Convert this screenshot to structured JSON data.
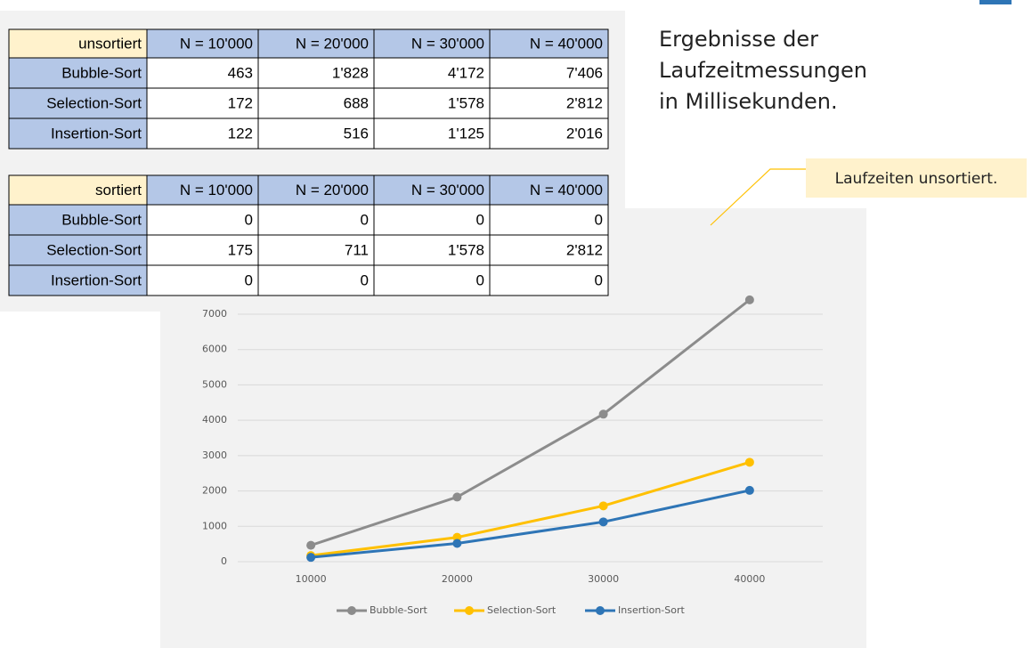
{
  "description": [
    "Ergebnisse der",
    "Laufzeitmessungen",
    "in Millisekunden."
  ],
  "callout": "Laufzeiten unsortiert.",
  "tables": [
    {
      "header": [
        "unsortiert",
        "N = 10'000",
        "N = 20'000",
        "N = 30'000",
        "N = 40'000"
      ],
      "rows": [
        [
          "Bubble-Sort",
          "463",
          "1'828",
          "4'172",
          "7'406"
        ],
        [
          "Selection-Sort",
          "172",
          "688",
          "1'578",
          "2'812"
        ],
        [
          "Insertion-Sort",
          "122",
          "516",
          "1'125",
          "2'016"
        ]
      ]
    },
    {
      "header": [
        "sortiert",
        "N = 10'000",
        "N = 20'000",
        "N = 30'000",
        "N = 40'000"
      ],
      "rows": [
        [
          "Bubble-Sort",
          "0",
          "0",
          "0",
          "0"
        ],
        [
          "Selection-Sort",
          "175",
          "711",
          "1'578",
          "2'812"
        ],
        [
          "Insertion-Sort",
          "0",
          "0",
          "0",
          "0"
        ]
      ]
    }
  ],
  "chart_data": {
    "type": "line",
    "x": [
      10000,
      20000,
      30000,
      40000
    ],
    "series": [
      {
        "name": "Bubble-Sort",
        "color": "#8c8c8c",
        "values": [
          463,
          1828,
          4172,
          7406
        ]
      },
      {
        "name": "Selection-Sort",
        "color": "#ffc000",
        "values": [
          172,
          688,
          1578,
          2812
        ]
      },
      {
        "name": "Insertion-Sort",
        "color": "#2e75b6",
        "values": [
          122,
          516,
          1125,
          2016
        ]
      }
    ],
    "xlim": [
      5000,
      45000
    ],
    "xticks": [
      10000,
      20000,
      30000,
      40000
    ],
    "ylim": [
      0,
      7000
    ],
    "yticks": [
      0,
      1000,
      2000,
      3000,
      4000,
      5000,
      6000,
      7000
    ],
    "grid": true,
    "legend": "bottom"
  }
}
